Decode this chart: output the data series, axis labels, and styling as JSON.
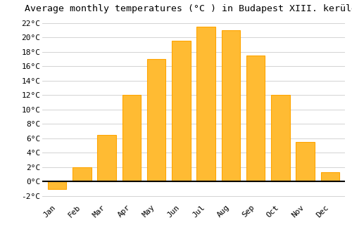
{
  "title": "Average monthly temperatures (°C ) in Budapest XIII. kerület",
  "months": [
    "Jan",
    "Feb",
    "Mar",
    "Apr",
    "May",
    "Jun",
    "Jul",
    "Aug",
    "Sep",
    "Oct",
    "Nov",
    "Dec"
  ],
  "values": [
    -1.0,
    2.0,
    6.5,
    12.0,
    17.0,
    19.5,
    21.5,
    21.0,
    17.5,
    12.0,
    5.5,
    1.3
  ],
  "bar_color": "#FFBB33",
  "bar_edge_color": "#FFA500",
  "background_color": "#FFFFFF",
  "grid_color": "#CCCCCC",
  "ytick_min": -2,
  "ytick_max": 22,
  "ytick_step": 2,
  "ylim_min": -2.8,
  "ylim_max": 22.8,
  "title_fontsize": 9.5,
  "tick_fontsize": 8,
  "bar_width": 0.75
}
